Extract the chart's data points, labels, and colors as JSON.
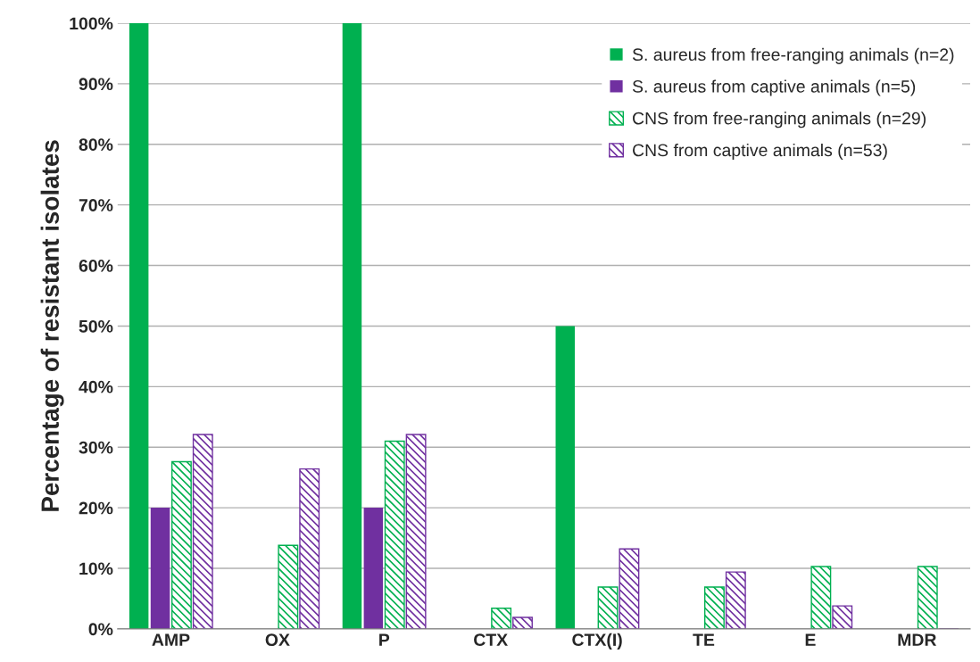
{
  "chart_data": {
    "type": "bar",
    "ylabel": "Percentage of resistant isolates",
    "categories": [
      "AMP",
      "OX",
      "P",
      "CTX",
      "CTX(I)",
      "TE",
      "E",
      "MDR"
    ],
    "series": [
      {
        "name": "S. aureus from free-ranging animals (n=2)",
        "color": "#00b050",
        "values": [
          100,
          0,
          100,
          0,
          50,
          0,
          0,
          0
        ]
      },
      {
        "name": "S. aureus from captive animals (n=5)",
        "color": "#7030a0",
        "values": [
          20,
          0,
          20,
          0,
          0,
          0,
          0,
          0
        ]
      },
      {
        "name": "CNS from free-ranging animals (n=29)",
        "color": "#00b050",
        "values": [
          27.6,
          13.8,
          31.0,
          3.4,
          6.9,
          6.9,
          10.3,
          10.3
        ]
      },
      {
        "name": "CNS from captive animals (n=53)",
        "color": "#7030a0",
        "values": [
          32.1,
          26.4,
          32.1,
          1.9,
          13.2,
          9.4,
          3.8,
          0
        ]
      }
    ],
    "ylim": [
      0,
      100
    ],
    "yticks": [
      {
        "value": 0,
        "label": "0%"
      },
      {
        "value": 10,
        "label": "10%"
      },
      {
        "value": 20,
        "label": "20%"
      },
      {
        "value": 30,
        "label": "30%"
      },
      {
        "value": 40,
        "label": "40%"
      },
      {
        "value": 50,
        "label": "50%"
      },
      {
        "value": 60,
        "label": "60%"
      },
      {
        "value": 70,
        "label": "70%"
      },
      {
        "value": 80,
        "label": "80%"
      },
      {
        "value": 90,
        "label": "90%"
      },
      {
        "value": 100,
        "label": "100%"
      }
    ],
    "grid": "y",
    "legend": "top right"
  }
}
